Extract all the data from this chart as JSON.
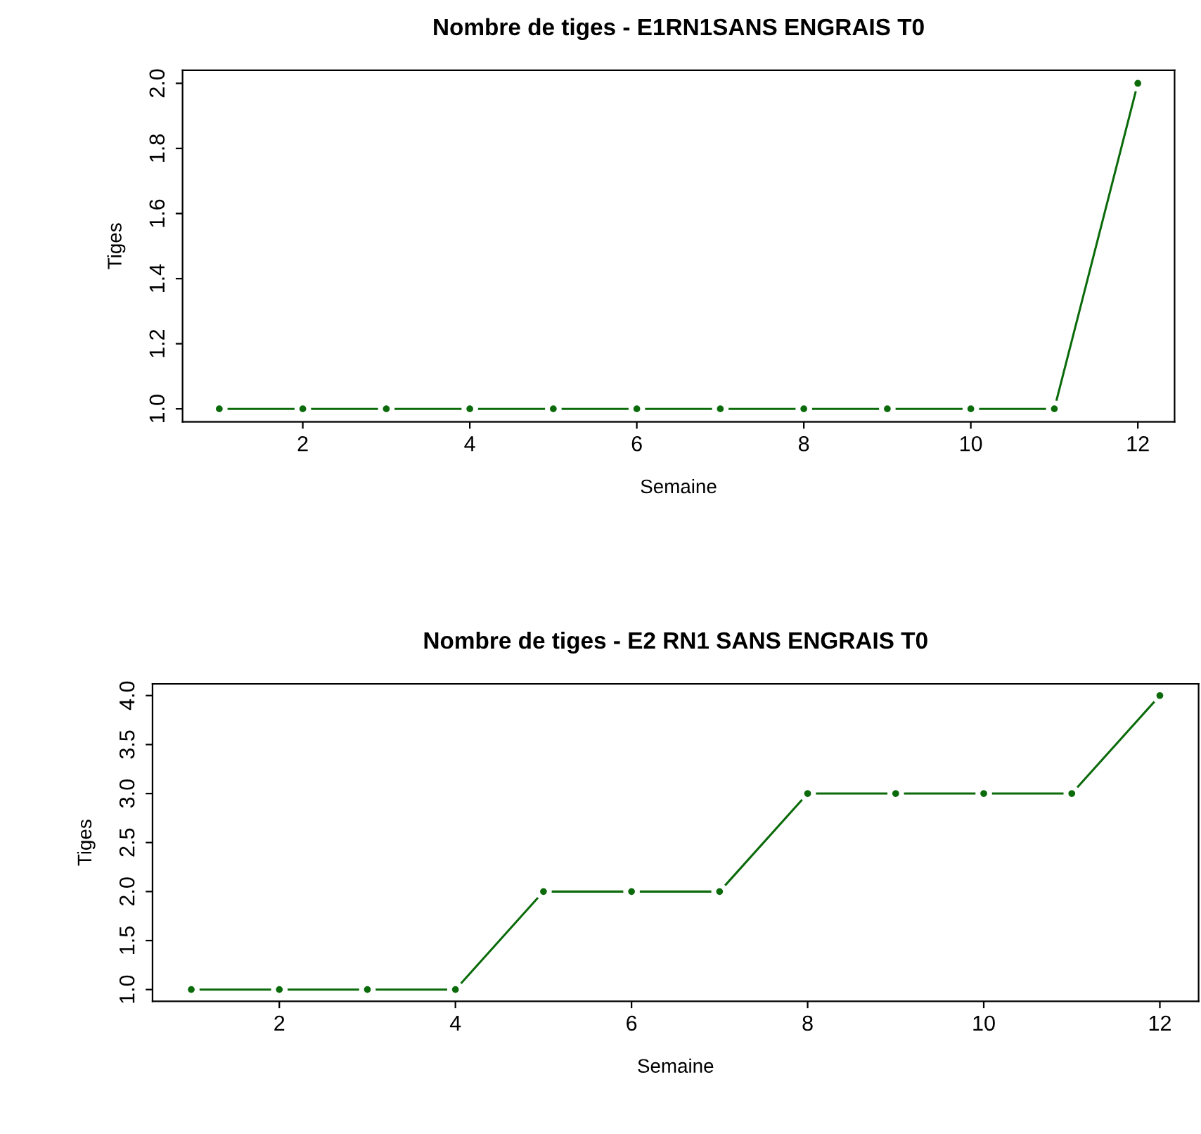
{
  "chart_data": [
    {
      "type": "line",
      "title": "Nombre de tiges - E1RN1SANS ENGRAIS T0",
      "xlabel": "Semaine",
      "ylabel": "Tiges",
      "marker": "circle",
      "line_style": "solid",
      "grid": false,
      "legend": false,
      "x": [
        1,
        2,
        3,
        4,
        5,
        6,
        7,
        8,
        9,
        10,
        11,
        12
      ],
      "series": [
        {
          "color": "#0b6b0b",
          "values": [
            1,
            1,
            1,
            1,
            1,
            1,
            1,
            1,
            1,
            1,
            1,
            2
          ]
        }
      ],
      "xlim": [
        0.56,
        12.44
      ],
      "xticks": [
        2,
        4,
        6,
        8,
        10,
        12
      ],
      "ylim": [
        0.96,
        2.04
      ],
      "yticks": [
        {
          "value": 1,
          "label": "1.0"
        },
        1.2,
        1.4,
        1.6,
        1.8,
        {
          "value": 2,
          "label": "2.0"
        }
      ]
    },
    {
      "type": "line",
      "title": "Nombre de tiges - E2 RN1 SANS ENGRAIS T0",
      "xlabel": "Semaine",
      "ylabel": "Tiges",
      "marker": "circle",
      "line_style": "solid",
      "grid": false,
      "legend": false,
      "x": [
        1,
        2,
        3,
        4,
        5,
        6,
        7,
        8,
        9,
        10,
        11,
        12
      ],
      "series": [
        {
          "color": "#0b6b0b",
          "values": [
            1,
            1,
            1,
            1,
            2,
            2,
            2,
            3,
            3,
            3,
            3,
            4
          ]
        }
      ],
      "xlim": [
        0.56,
        12.44
      ],
      "xticks": [
        2,
        4,
        6,
        8,
        10,
        12
      ],
      "ylim": [
        0.88,
        4.12
      ],
      "yticks": [
        {
          "value": 1,
          "label": "1.0"
        },
        1.5,
        {
          "value": 2,
          "label": "2.0"
        },
        2.5,
        {
          "value": 3,
          "label": "3.0"
        },
        3.5,
        {
          "value": 4,
          "label": "4.0"
        }
      ]
    }
  ]
}
